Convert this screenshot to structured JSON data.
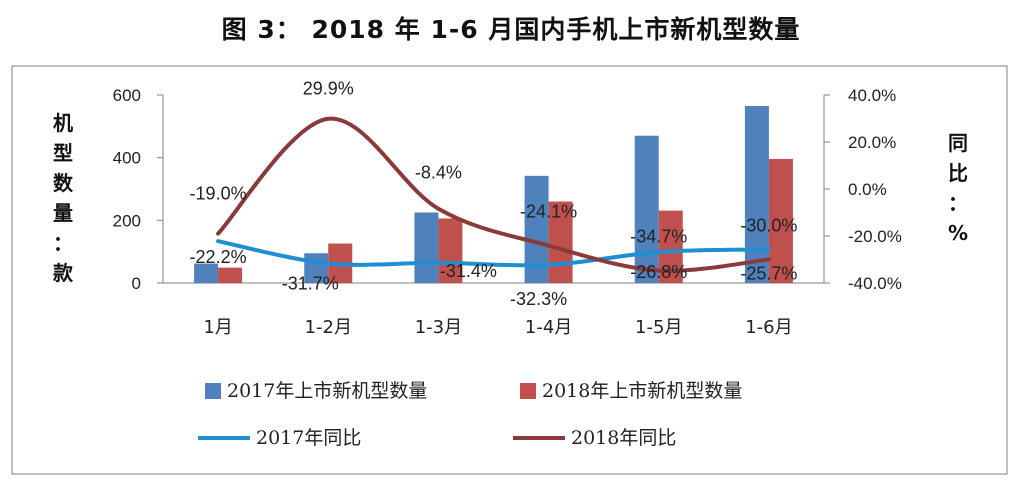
{
  "title": "图 3：   2018 年 1-6 月国内手机上市新机型数量",
  "chart_data": {
    "type": "bar",
    "title": "图 3：   2018 年 1-6 月国内手机上市新机型数量",
    "categories": [
      "1月",
      "1-2月",
      "1-3月",
      "1-4月",
      "1-5月",
      "1-6月"
    ],
    "series": [
      {
        "name": "2017年上市新机型数量",
        "type": "bar",
        "axis": "left",
        "color": "#4f81bd",
        "values": [
          62,
          95,
          225,
          342,
          470,
          565
        ]
      },
      {
        "name": "2018年上市新机型数量",
        "type": "bar",
        "axis": "left",
        "color": "#c0504d",
        "values": [
          49,
          126,
          206,
          260,
          231,
          396
        ]
      },
      {
        "name": "2017年同比",
        "type": "line",
        "axis": "right",
        "color": "#1f8fd1",
        "values": [
          -22.2,
          -31.7,
          -31.4,
          -32.3,
          -26.8,
          -25.7
        ],
        "labels": [
          "-22.2%",
          "-31.7%",
          "-31.4%",
          "-32.3%",
          "-26.8%",
          "-25.7%"
        ]
      },
      {
        "name": "2018年同比",
        "type": "line",
        "axis": "right",
        "color": "#8b3a3a",
        "values": [
          -19.0,
          29.9,
          -8.4,
          -24.1,
          -34.7,
          -30.0
        ],
        "labels": [
          "-19.0%",
          "29.9%",
          "-8.4%",
          "-24.1%",
          "-34.7%",
          "-30.0%"
        ]
      }
    ],
    "ylabel": "机型数量：款",
    "y2label": "同比：%",
    "ylim": [
      0,
      600
    ],
    "y2lim": [
      -40,
      40
    ],
    "yticks": [
      "0",
      "200",
      "400",
      "600"
    ],
    "y2ticks": [
      "-40.0%",
      "-20.0%",
      "0.0%",
      "20.0%",
      "40.0%"
    ],
    "legend_position": "bottom",
    "grid": false
  }
}
